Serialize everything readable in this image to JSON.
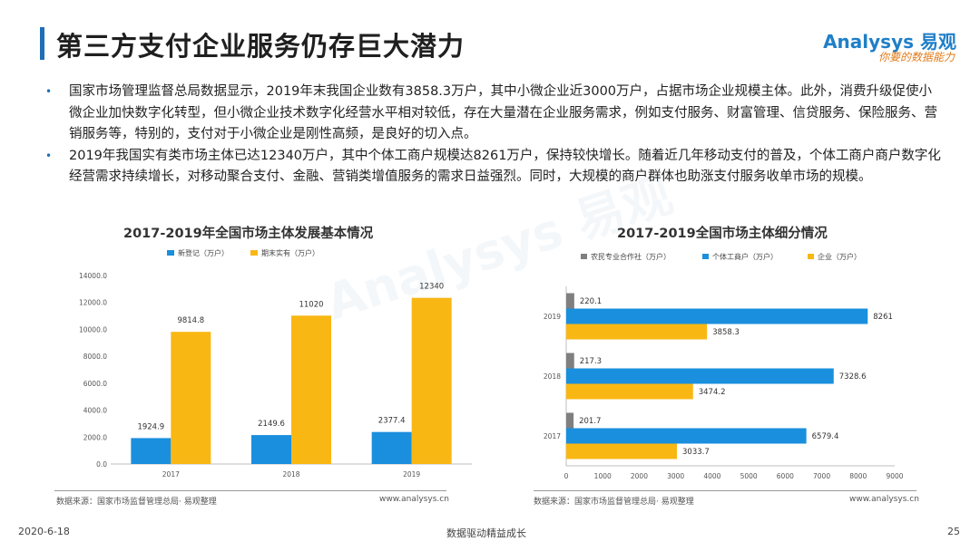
{
  "slide": {
    "title": "第三方支付企业服务仍存巨大潜力",
    "logo_brand": "Analysys 易观",
    "logo_slogan": "你要的数据能力",
    "watermark": "Analysys 易观",
    "bullets": [
      "国家市场管理监督总局数据显示，2019年末我国企业数有3858.3万户，其中小微企业近3000万户，占据市场企业规模主体。此外，消费升级促使小微企业加快数字化转型，但小微企业技术数字化经营水平相对较低，存在大量潜在企业服务需求，例如支付服务、财富管理、信贷服务、保险服务、营销服务等，特别的，支付对于小微企业是刚性高频，是良好的切入点。",
      "2019年我国实有类市场主体已达12340万户，其中个体工商户规模达8261万户，保持较快增长。随着近几年移动支付的普及，个体工商户商户数字化经营需求持续增长，对移动聚合支付、金融、营销类增值服务的需求日益强烈。同时，大规模的商户群体也助涨支付服务收单市场的规模。"
    ],
    "footer_date": "2020-6-18",
    "footer_center": "数据驱动精益成长",
    "footer_page": "25",
    "colors": {
      "blue": "#1a8fdd",
      "orange": "#f9b714",
      "gray": "#7f7f7f",
      "title_bar": "#1e6fb5"
    }
  },
  "chart_data": [
    {
      "type": "bar",
      "title": "2017-2019年全国市场主体发展基本情况",
      "categories": [
        "2017",
        "2018",
        "2019"
      ],
      "series": [
        {
          "name": "新登记（万户）",
          "values": [
            1924.9,
            2149.6,
            2377.4
          ],
          "labels": [
            "1924.9",
            "2149.6",
            "2377.4"
          ],
          "color": "#1a8fdd"
        },
        {
          "name": "期末实有（万户）",
          "values": [
            9814.8,
            11020,
            12340
          ],
          "labels": [
            "9814.8",
            "11020",
            "12340"
          ],
          "color": "#f9b714"
        }
      ],
      "ylim": [
        0,
        14000
      ],
      "yticks": [
        0,
        2000,
        4000,
        6000,
        8000,
        10000,
        12000,
        14000
      ],
      "ytick_labels": [
        "0.0",
        "2000.0",
        "4000.0",
        "6000.0",
        "8000.0",
        "10000.0",
        "12000.0",
        "14000.0"
      ],
      "legend_position": "top",
      "grid": false,
      "source": "数据来源：国家市场监督管理总局· 易观整理",
      "source_url": "www.analysys.cn"
    },
    {
      "type": "bar",
      "orientation": "horizontal",
      "title": "2017-2019全国市场主体细分情况",
      "categories": [
        "2019",
        "2018",
        "2017"
      ],
      "series": [
        {
          "name": "农民专业合作社（万户）",
          "values": [
            220.1,
            217.3,
            201.7
          ],
          "labels": [
            "220.1",
            "217.3",
            "201.7"
          ],
          "color": "#7f7f7f"
        },
        {
          "name": "个体工商户（万户）",
          "values": [
            8261,
            7328.6,
            6579.4
          ],
          "labels": [
            "8261",
            "7328.6",
            "6579.4"
          ],
          "color": "#1a8fdd"
        },
        {
          "name": "企业（万户）",
          "values": [
            3858.3,
            3474.2,
            3033.7
          ],
          "labels": [
            "3858.3",
            "3474.2",
            "3033.7"
          ],
          "color": "#f9b714"
        }
      ],
      "xlim": [
        0,
        9000
      ],
      "xticks": [
        0,
        1000,
        2000,
        3000,
        4000,
        5000,
        6000,
        7000,
        8000,
        9000
      ],
      "xtick_labels": [
        "0",
        "1000",
        "2000",
        "3000",
        "4000",
        "5000",
        "6000",
        "7000",
        "8000",
        "9000"
      ],
      "legend_position": "top",
      "grid": false,
      "source": "数据来源：国家市场监督管理总局· 易观整理",
      "source_url": "www.analysys.cn"
    }
  ]
}
